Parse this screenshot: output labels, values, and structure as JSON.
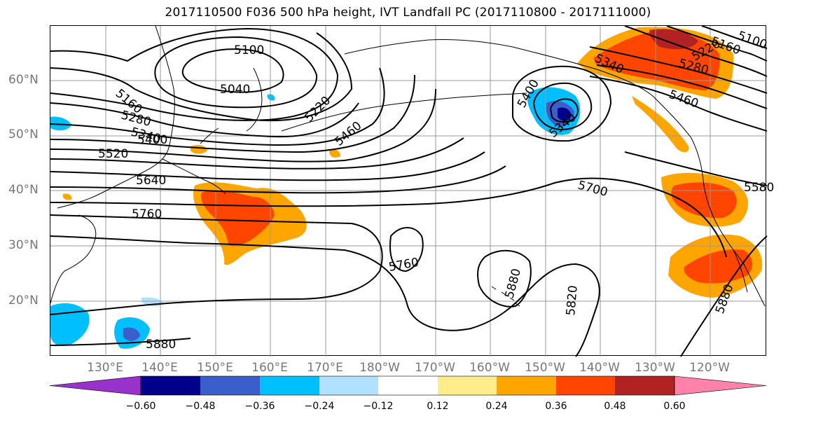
{
  "title": "2017110500 F036 500 hPa height, IVT Landfall PC (2017110800 - 2017111000)",
  "lat_labels": [
    "60°N",
    "50°N",
    "40°N",
    "30°N",
    "20°N"
  ],
  "lon_labels": [
    "130°E",
    "140°E",
    "150°E",
    "160°E",
    "170°E",
    "180°W",
    "170°W",
    "160°W",
    "150°W",
    "140°W",
    "130°W",
    "120°W"
  ],
  "contour_labels": [
    "5100",
    "5040",
    "5160",
    "5220",
    "5280",
    "5340",
    "5400",
    "5460",
    "5520",
    "5640",
    "5760",
    "5700",
    "5760",
    "5880",
    "5820",
    "5880",
    "5880",
    "5400",
    "5340",
    "5160",
    "5220",
    "5280",
    "5340",
    "5460",
    "5580",
    "5100"
  ],
  "colorbar": {
    "colors": [
      "#9932cc",
      "#00008b",
      "#3a5fcd",
      "#00bfff",
      "#b0e2ff",
      "#ffffff",
      "#ffec8b",
      "#ffa500",
      "#ff4500",
      "#b22222",
      "#ff82ab"
    ],
    "ticks": [
      "−0.60",
      "−0.48",
      "−0.36",
      "−0.24",
      "−0.12",
      "0.12",
      "0.24",
      "0.36",
      "0.48",
      "0.60"
    ]
  }
}
